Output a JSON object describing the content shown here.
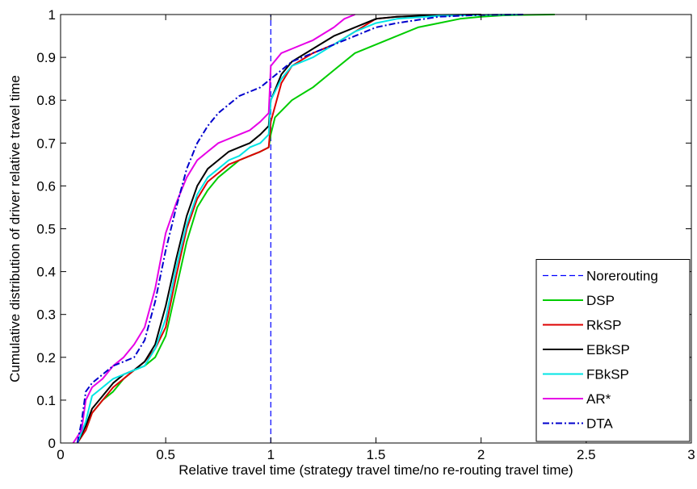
{
  "chart_data": {
    "type": "line",
    "xlabel": "Relative travel time (strategy travel time/no re-routing travel time)",
    "ylabel": "Cumulative distribution of driver relative travel time",
    "xlim": [
      0,
      3
    ],
    "ylim": [
      0,
      1
    ],
    "x_ticks": [
      "0",
      "0.5",
      "1",
      "1.5",
      "2",
      "2.5",
      "3"
    ],
    "y_ticks": [
      "0",
      "0.1",
      "0.2",
      "0.3",
      "0.4",
      "0.5",
      "0.6",
      "0.7",
      "0.8",
      "0.9",
      "1"
    ],
    "grid": false,
    "legend_position": "bottom-right",
    "series": [
      {
        "name": "Norerouting",
        "color": "#0000ff",
        "style": "dashed",
        "x": [
          1,
          1
        ],
        "y": [
          0,
          1
        ]
      },
      {
        "name": "DSP",
        "color": "#00cc00",
        "style": "solid",
        "x": [
          0.08,
          0.12,
          0.15,
          0.2,
          0.25,
          0.3,
          0.35,
          0.4,
          0.45,
          0.5,
          0.55,
          0.6,
          0.65,
          0.7,
          0.75,
          0.8,
          0.85,
          0.9,
          0.95,
          0.99,
          1.0,
          1.02,
          1.1,
          1.2,
          1.3,
          1.4,
          1.5,
          1.6,
          1.7,
          1.8,
          1.9,
          2.0,
          2.1,
          2.2,
          2.35
        ],
        "y": [
          0,
          0.03,
          0.07,
          0.1,
          0.12,
          0.15,
          0.17,
          0.18,
          0.2,
          0.25,
          0.36,
          0.47,
          0.55,
          0.59,
          0.62,
          0.64,
          0.66,
          0.67,
          0.68,
          0.69,
          0.72,
          0.76,
          0.8,
          0.83,
          0.87,
          0.91,
          0.93,
          0.95,
          0.97,
          0.98,
          0.99,
          0.995,
          0.998,
          0.999,
          1.0
        ]
      },
      {
        "name": "RkSP",
        "color": "#dd0000",
        "style": "solid",
        "x": [
          0.08,
          0.12,
          0.15,
          0.2,
          0.25,
          0.3,
          0.35,
          0.4,
          0.45,
          0.5,
          0.55,
          0.6,
          0.65,
          0.7,
          0.75,
          0.8,
          0.85,
          0.9,
          0.95,
          0.99,
          1.0,
          1.05,
          1.1,
          1.2,
          1.3,
          1.4,
          1.5,
          1.6,
          1.8,
          2.0
        ],
        "y": [
          0,
          0.03,
          0.07,
          0.1,
          0.13,
          0.15,
          0.17,
          0.19,
          0.22,
          0.27,
          0.39,
          0.5,
          0.57,
          0.61,
          0.63,
          0.65,
          0.66,
          0.67,
          0.68,
          0.69,
          0.75,
          0.84,
          0.88,
          0.91,
          0.93,
          0.96,
          0.99,
          0.995,
          0.998,
          1.0
        ]
      },
      {
        "name": "EBkSP",
        "color": "#000000",
        "style": "solid",
        "x": [
          0.08,
          0.12,
          0.15,
          0.2,
          0.25,
          0.3,
          0.35,
          0.4,
          0.45,
          0.5,
          0.55,
          0.6,
          0.65,
          0.7,
          0.75,
          0.8,
          0.85,
          0.9,
          0.95,
          0.99,
          1.0,
          1.05,
          1.1,
          1.2,
          1.3,
          1.4,
          1.5,
          1.6,
          1.8,
          2.0
        ],
        "y": [
          0,
          0.04,
          0.08,
          0.11,
          0.14,
          0.16,
          0.17,
          0.19,
          0.23,
          0.32,
          0.43,
          0.53,
          0.6,
          0.64,
          0.66,
          0.68,
          0.69,
          0.7,
          0.72,
          0.74,
          0.8,
          0.86,
          0.89,
          0.92,
          0.95,
          0.97,
          0.99,
          0.995,
          0.999,
          1.0
        ]
      },
      {
        "name": "FBkSP",
        "color": "#00e5e5",
        "style": "solid",
        "x": [
          0.08,
          0.12,
          0.15,
          0.2,
          0.25,
          0.3,
          0.35,
          0.4,
          0.45,
          0.5,
          0.55,
          0.6,
          0.65,
          0.7,
          0.75,
          0.8,
          0.85,
          0.9,
          0.95,
          0.99,
          1.0,
          1.05,
          1.1,
          1.2,
          1.3,
          1.4,
          1.5,
          1.6,
          1.8,
          2.0,
          2.2
        ],
        "y": [
          0,
          0.05,
          0.11,
          0.13,
          0.15,
          0.16,
          0.17,
          0.18,
          0.22,
          0.29,
          0.41,
          0.51,
          0.58,
          0.62,
          0.64,
          0.66,
          0.67,
          0.69,
          0.7,
          0.72,
          0.8,
          0.85,
          0.88,
          0.9,
          0.93,
          0.96,
          0.98,
          0.99,
          0.997,
          0.999,
          1.0
        ]
      },
      {
        "name": "AR*",
        "color": "#e600e6",
        "style": "solid",
        "x": [
          0.06,
          0.1,
          0.12,
          0.15,
          0.2,
          0.25,
          0.3,
          0.35,
          0.4,
          0.45,
          0.5,
          0.55,
          0.6,
          0.65,
          0.7,
          0.75,
          0.8,
          0.85,
          0.9,
          0.95,
          0.99,
          1.0,
          1.05,
          1.1,
          1.2,
          1.3,
          1.35,
          1.4
        ],
        "y": [
          0,
          0.03,
          0.1,
          0.13,
          0.15,
          0.18,
          0.2,
          0.23,
          0.27,
          0.36,
          0.49,
          0.56,
          0.62,
          0.66,
          0.68,
          0.7,
          0.71,
          0.72,
          0.73,
          0.75,
          0.77,
          0.88,
          0.91,
          0.92,
          0.94,
          0.97,
          0.99,
          1.0
        ]
      },
      {
        "name": "DTA",
        "color": "#0000cc",
        "style": "dashdot",
        "x": [
          0.08,
          0.1,
          0.12,
          0.15,
          0.2,
          0.25,
          0.3,
          0.35,
          0.4,
          0.45,
          0.5,
          0.55,
          0.6,
          0.65,
          0.7,
          0.75,
          0.8,
          0.85,
          0.9,
          0.95,
          1.0,
          1.05,
          1.1,
          1.2,
          1.3,
          1.4,
          1.5,
          1.6,
          1.8,
          2.0,
          2.2
        ],
        "y": [
          0,
          0.05,
          0.12,
          0.14,
          0.16,
          0.18,
          0.19,
          0.2,
          0.24,
          0.33,
          0.45,
          0.55,
          0.64,
          0.7,
          0.74,
          0.77,
          0.79,
          0.81,
          0.82,
          0.83,
          0.85,
          0.87,
          0.89,
          0.91,
          0.93,
          0.95,
          0.97,
          0.98,
          0.995,
          0.999,
          1.0
        ]
      }
    ]
  }
}
